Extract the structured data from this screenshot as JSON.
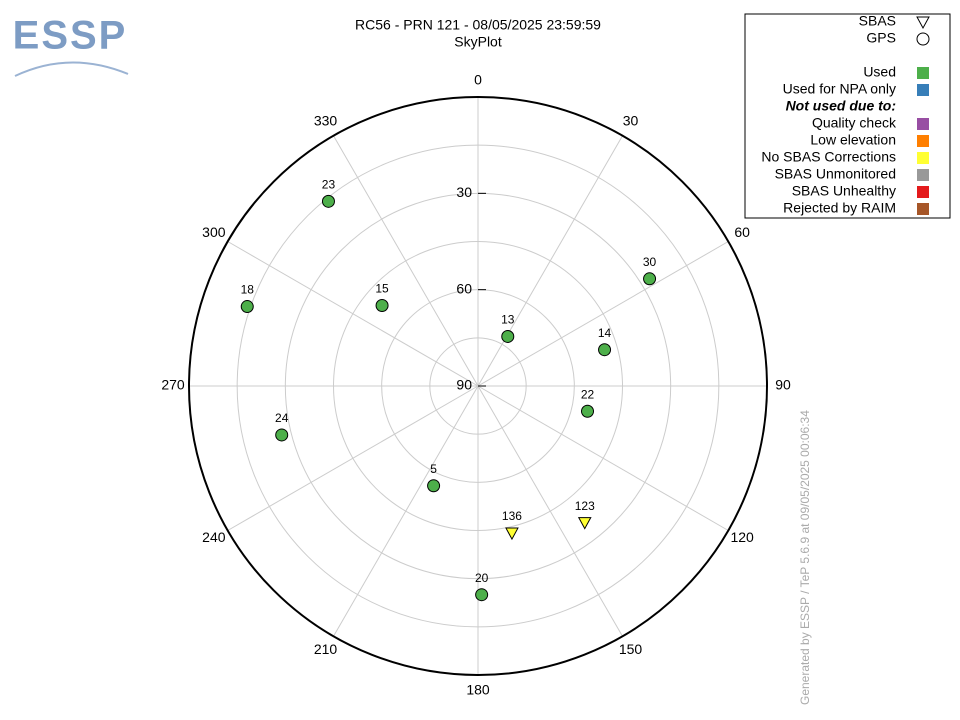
{
  "logo": "ESSP",
  "footer": "Generated by ESSP / TeP 5.6.9 at 09/05/2025 00:06:34",
  "chart_data": {
    "type": "skyplot",
    "title": "RC56 - PRN 121 - 08/05/2025 23:59:59",
    "subtitle": "SkyPlot",
    "rlim": [
      90,
      0
    ],
    "rings": [
      15,
      30,
      45,
      60,
      75
    ],
    "rticks": [
      30,
      60,
      90
    ],
    "thetaticks": [
      0,
      30,
      60,
      90,
      120,
      150,
      180,
      210,
      240,
      270,
      300,
      330
    ],
    "markers": [
      {
        "name": "SBAS",
        "shape": "triangle"
      },
      {
        "name": "GPS",
        "shape": "circle"
      }
    ],
    "legend_heading": "Not used due to:",
    "series": [
      {
        "name": "Used",
        "color": "#4daf4a",
        "points": [
          {
            "label": "23",
            "azimuth": 321,
            "elevation": 16,
            "shape": "circle"
          },
          {
            "label": "18",
            "azimuth": 289,
            "elevation": 14,
            "shape": "circle"
          },
          {
            "label": "15",
            "azimuth": 310,
            "elevation": 51,
            "shape": "circle"
          },
          {
            "label": "13",
            "azimuth": 31,
            "elevation": 72,
            "shape": "circle"
          },
          {
            "label": "30",
            "azimuth": 58,
            "elevation": 27,
            "shape": "circle"
          },
          {
            "label": "14",
            "azimuth": 74,
            "elevation": 49,
            "shape": "circle"
          },
          {
            "label": "22",
            "azimuth": 103,
            "elevation": 55,
            "shape": "circle"
          },
          {
            "label": "24",
            "azimuth": 256,
            "elevation": 27,
            "shape": "circle"
          },
          {
            "label": "5",
            "azimuth": 204,
            "elevation": 56,
            "shape": "circle"
          },
          {
            "label": "20",
            "azimuth": 179,
            "elevation": 25,
            "shape": "circle"
          }
        ]
      },
      {
        "name": "Used for NPA only",
        "color": "#377eb8",
        "points": []
      },
      {
        "name": "Quality check",
        "color": "#984ea3",
        "points": []
      },
      {
        "name": "Low elevation",
        "color": "#ff7f00",
        "points": []
      },
      {
        "name": "No SBAS Corrections",
        "color": "#ffff33",
        "points": [
          {
            "label": "136",
            "azimuth": 167,
            "elevation": 43,
            "shape": "triangle"
          },
          {
            "label": "123",
            "azimuth": 142,
            "elevation": 36,
            "shape": "triangle"
          }
        ]
      },
      {
        "name": "SBAS Unmonitored",
        "color": "#999999",
        "points": []
      },
      {
        "name": "SBAS Unhealthy",
        "color": "#e41a1c",
        "points": []
      },
      {
        "name": "Rejected by RAIM",
        "color": "#a65628",
        "points": []
      }
    ]
  }
}
